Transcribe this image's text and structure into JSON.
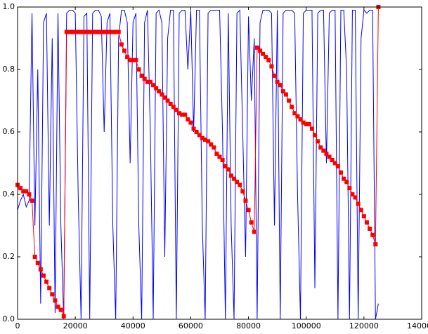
{
  "chart_data": {
    "type": "line",
    "x": [
      0,
      1000,
      2000,
      3000,
      4000,
      5000,
      6000,
      7000,
      8000,
      9000,
      10000,
      11000,
      12000,
      13000,
      14000,
      15000,
      16000,
      17000,
      18000,
      19000,
      20000,
      21000,
      22000,
      23000,
      24000,
      25000,
      26000,
      27000,
      28000,
      29000,
      30000,
      31000,
      32000,
      33000,
      34000,
      35000,
      36000,
      37000,
      38000,
      39000,
      40000,
      41000,
      42000,
      43000,
      44000,
      45000,
      46000,
      47000,
      48000,
      49000,
      50000,
      51000,
      52000,
      53000,
      54000,
      55000,
      56000,
      57000,
      58000,
      59000,
      60000,
      61000,
      62000,
      63000,
      64000,
      65000,
      66000,
      67000,
      68000,
      69000,
      70000,
      71000,
      72000,
      73000,
      74000,
      75000,
      76000,
      77000,
      78000,
      79000,
      80000,
      81000,
      82000,
      83000,
      84000,
      85000,
      86000,
      87000,
      88000,
      89000,
      90000,
      91000,
      92000,
      93000,
      94000,
      95000,
      96000,
      97000,
      98000,
      99000,
      100000,
      101000,
      102000,
      103000,
      104000,
      105000,
      106000,
      107000,
      108000,
      109000,
      110000,
      111000,
      112000,
      113000,
      114000,
      115000,
      116000,
      117000,
      118000,
      119000,
      120000,
      121000,
      122000,
      123000,
      124000,
      125000
    ],
    "series": [
      {
        "color": "#0000ff",
        "markers": false,
        "values": [
          0.35,
          0.38,
          0.4,
          0.36,
          0.38,
          0.98,
          0.3,
          0.8,
          0.05,
          0.95,
          0.98,
          0.3,
          0.9,
          0.02,
          0.98,
          0.3,
          0.0,
          0.98,
          0.99,
          0.99,
          0.98,
          0.4,
          0.0,
          0.97,
          0.98,
          0.0,
          0.98,
          0.99,
          0.99,
          0.97,
          0.6,
          0.95,
          0.98,
          0.3,
          0.0,
          0.9,
          0.99,
          0.99,
          0.95,
          0.5,
          0.95,
          0.98,
          0.3,
          0.0,
          0.95,
          0.99,
          0.6,
          0.0,
          0.98,
          0.99,
          0.95,
          0.2,
          0.9,
          0.99,
          0.99,
          0.0,
          0.98,
          0.99,
          0.99,
          0.8,
          0.99,
          0.6,
          0.99,
          0.99,
          0.3,
          0.0,
          0.98,
          0.99,
          0.99,
          0.99,
          0.99,
          0.6,
          0.0,
          0.98,
          0.3,
          0.0,
          0.98,
          0.99,
          0.6,
          0.2,
          0.97,
          0.7,
          0.9,
          0.0,
          0.95,
          0.99,
          0.99,
          0.99,
          0.98,
          0.3,
          0.99,
          0.0,
          0.98,
          0.99,
          0.99,
          0.99,
          0.98,
          0.4,
          0.0,
          0.98,
          0.99,
          0.99,
          0.99,
          0.1,
          0.98,
          0.99,
          0.99,
          0.5,
          0.98,
          0.99,
          0.99,
          0.0,
          0.99,
          0.99,
          0.8,
          0.0,
          0.99,
          0.99,
          0.0,
          0.9,
          0.99,
          0.98,
          0.99,
          0.99,
          0.0,
          0.05
        ]
      },
      {
        "color": "#ff0000",
        "markers": true,
        "values": [
          0.43,
          0.42,
          0.41,
          0.41,
          0.4,
          0.38,
          0.2,
          0.18,
          0.16,
          0.14,
          0.12,
          0.1,
          0.08,
          0.06,
          0.04,
          0.03,
          0.01,
          0.92,
          0.92,
          0.92,
          0.92,
          0.92,
          0.92,
          0.92,
          0.92,
          0.92,
          0.92,
          0.92,
          0.92,
          0.92,
          0.92,
          0.92,
          0.92,
          0.92,
          0.92,
          0.92,
          0.88,
          0.86,
          0.84,
          0.83,
          0.83,
          0.83,
          0.8,
          0.78,
          0.77,
          0.76,
          0.76,
          0.75,
          0.74,
          0.73,
          0.72,
          0.71,
          0.7,
          0.69,
          0.68,
          0.67,
          0.66,
          0.655,
          0.655,
          0.64,
          0.63,
          0.61,
          0.6,
          0.59,
          0.58,
          0.575,
          0.57,
          0.56,
          0.55,
          0.53,
          0.52,
          0.51,
          0.49,
          0.48,
          0.46,
          0.45,
          0.44,
          0.43,
          0.41,
          0.38,
          0.35,
          0.31,
          0.28,
          0.87,
          0.86,
          0.85,
          0.84,
          0.83,
          0.81,
          0.78,
          0.76,
          0.75,
          0.73,
          0.72,
          0.7,
          0.68,
          0.66,
          0.65,
          0.64,
          0.63,
          0.625,
          0.625,
          0.61,
          0.59,
          0.57,
          0.55,
          0.54,
          0.53,
          0.52,
          0.51,
          0.5,
          0.49,
          0.47,
          0.45,
          0.44,
          0.42,
          0.4,
          0.39,
          0.37,
          0.35,
          0.33,
          0.31,
          0.29,
          0.27,
          0.24,
          1.0
        ]
      }
    ],
    "xlim": [
      0,
      140000
    ],
    "xticks": [
      0,
      20000,
      40000,
      60000,
      80000,
      100000,
      120000,
      140000
    ],
    "ylim": [
      0,
      1
    ],
    "yticks": [
      {
        "value": 0,
        "label": "0.0"
      },
      0.2,
      0.4,
      0.6,
      0.8,
      {
        "value": 1,
        "label": "1.0"
      }
    ],
    "grid": false
  }
}
